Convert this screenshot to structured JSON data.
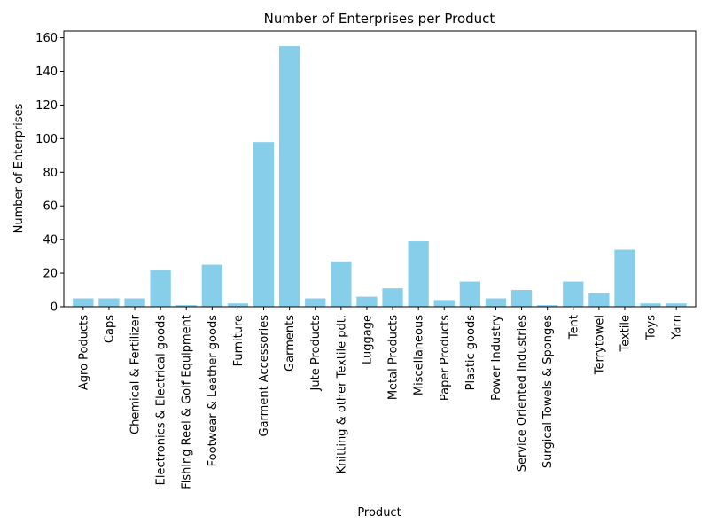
{
  "chart_data": {
    "type": "bar",
    "title": "Number of Enterprises per Product",
    "xlabel": "Product",
    "ylabel": "Number of Enterprises",
    "ylim": [
      0,
      164
    ],
    "yticks": [
      0,
      20,
      40,
      60,
      80,
      100,
      120,
      140,
      160
    ],
    "bar_color": "#87ceeb",
    "grid": false,
    "categories": [
      "Agro Poducts",
      "Caps",
      "Chemical & Fertilizer",
      "Electronics & Electrical goods",
      "Fishing Reel & Golf Equipment",
      "Footwear & Leather goods",
      "Furniture",
      "Garment Accessories",
      "Garments",
      "Jute Products",
      "Knitting & other Textile pdt.",
      "Luggage",
      "Metal Products",
      "Miscellaneous",
      "Paper Products",
      "Plastic goods",
      "Power Industry",
      "Service Oriented Industries",
      "Surgical Towels & Sponges",
      "Tent",
      "Terrytowel",
      "Textile",
      "Toys",
      "Yarn"
    ],
    "values": [
      5,
      5,
      5,
      22,
      1,
      25,
      2,
      98,
      155,
      5,
      27,
      6,
      11,
      39,
      4,
      15,
      5,
      10,
      1,
      15,
      8,
      34,
      2,
      2
    ]
  }
}
